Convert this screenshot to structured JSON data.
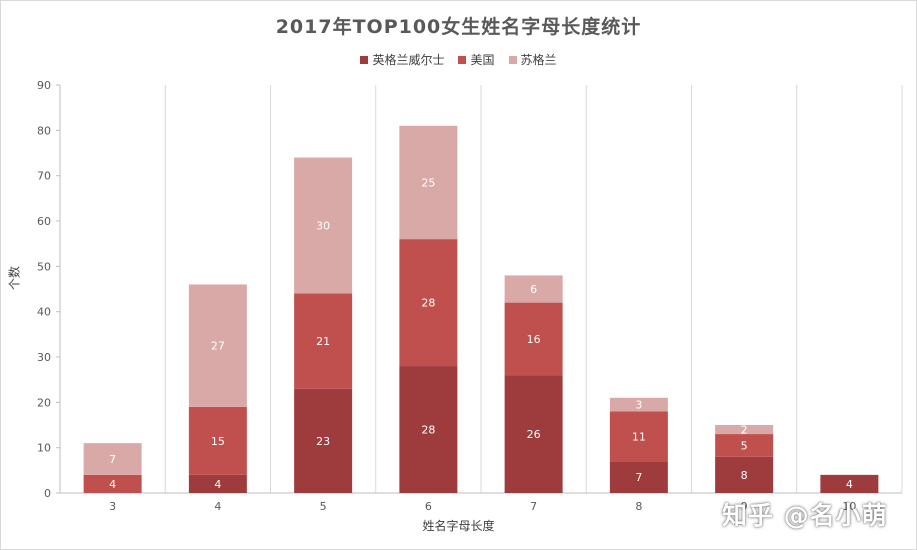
{
  "chart_data": {
    "type": "bar",
    "stacked": true,
    "title": "2017年TOP100女生姓名字母长度统计",
    "xlabel": "姓名字母长度",
    "ylabel": "个数",
    "categories": [
      "3",
      "4",
      "5",
      "6",
      "7",
      "8",
      "9",
      "10"
    ],
    "ylim": [
      0,
      90
    ],
    "yticks": [
      0,
      10,
      20,
      30,
      40,
      50,
      60,
      70,
      80,
      90
    ],
    "legend_position": "top",
    "series": [
      {
        "name": "英格兰威尔士",
        "color": "#9e3b3d",
        "values": [
          0,
          4,
          23,
          28,
          26,
          7,
          8,
          4
        ]
      },
      {
        "name": "美国",
        "color": "#c0504d",
        "values": [
          4,
          15,
          21,
          28,
          16,
          11,
          5,
          0
        ]
      },
      {
        "name": "苏格兰",
        "color": "#d9a9a8",
        "values": [
          7,
          27,
          30,
          25,
          6,
          3,
          2,
          0
        ]
      }
    ]
  },
  "watermark": "知乎 @名小萌"
}
